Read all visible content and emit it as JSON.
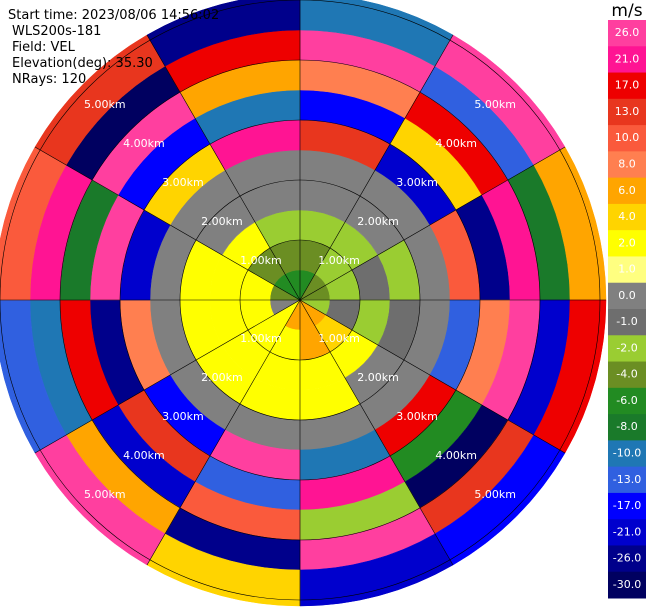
{
  "chart_data": {
    "type": "ppi",
    "info": [
      "Start time: 2023/08/06 14:56:02",
      "WLS200s-181",
      "Field: VEL",
      "Elevation(deg): 35.30",
      "NRays: 120"
    ],
    "azimuth_edges": [
      0,
      30,
      60,
      90,
      120,
      150,
      180,
      210,
      240,
      270,
      300,
      330,
      360
    ],
    "range_edges": [
      0,
      0.5,
      1,
      1.5,
      2,
      2.5,
      3,
      3.5,
      4,
      4.5,
      5.1
    ],
    "values": [
      [
        -6,
        -4,
        -2,
        0,
        0,
        13,
        -17,
        8,
        26,
        -10
      ],
      [
        -4,
        -2,
        -2,
        0,
        0,
        -21,
        4,
        17,
        -13,
        26
      ],
      [
        -4,
        -2,
        -1,
        -2,
        0,
        10,
        -26,
        21,
        -8,
        6
      ],
      [
        -2,
        -1,
        -2,
        -1,
        0,
        -13,
        8,
        26,
        -21,
        17
      ],
      [
        6,
        4,
        2,
        0,
        0,
        17,
        -6,
        -30,
        13,
        -17
      ],
      [
        6,
        6,
        2,
        2,
        0,
        -10,
        21,
        -2,
        26,
        -21
      ],
      [
        6,
        2,
        2,
        2,
        0,
        26,
        -13,
        10,
        -26,
        4
      ],
      [
        2,
        2,
        2,
        2,
        0,
        -17,
        13,
        -21,
        6,
        26
      ],
      [
        0,
        2,
        2,
        2,
        0,
        8,
        -26,
        17,
        -10,
        -13
      ],
      [
        -4,
        2,
        2,
        2,
        0,
        -21,
        26,
        -8,
        21,
        10
      ],
      [
        -6,
        -4,
        2,
        0,
        0,
        4,
        -17,
        26,
        -30,
        13
      ],
      [
        -6,
        -4,
        -2,
        0,
        0,
        21,
        -10,
        6,
        17,
        -26
      ]
    ],
    "range_rings": [
      {
        "value": 1,
        "label": "1.00km"
      },
      {
        "value": 2,
        "label": "2.00km"
      },
      {
        "value": 3,
        "label": "3.00km"
      },
      {
        "value": 4,
        "label": "4.00km"
      },
      {
        "value": 5,
        "label": "5.00km"
      }
    ],
    "colorbar": {
      "title": "m/s",
      "ticks": [
        {
          "value": 26,
          "label": "26.0"
        },
        {
          "value": 21,
          "label": "21.0"
        },
        {
          "value": 17,
          "label": "17.0"
        },
        {
          "value": 13,
          "label": "13.0"
        },
        {
          "value": 10,
          "label": "10.0"
        },
        {
          "value": 8,
          "label": "8.0"
        },
        {
          "value": 6,
          "label": "6.0"
        },
        {
          "value": 4,
          "label": "4.0"
        },
        {
          "value": 2,
          "label": "2.0"
        },
        {
          "value": 1,
          "label": "1.0"
        },
        {
          "value": 0,
          "label": "0.0"
        },
        {
          "value": -1,
          "label": "-1.0"
        },
        {
          "value": -2,
          "label": "-2.0"
        },
        {
          "value": -4,
          "label": "-4.0"
        },
        {
          "value": -6,
          "label": "-6.0"
        },
        {
          "value": -8,
          "label": "-8.0"
        },
        {
          "value": -10,
          "label": "-10.0"
        },
        {
          "value": -13,
          "label": "-13.0"
        },
        {
          "value": -17,
          "label": "-17.0"
        },
        {
          "value": -21,
          "label": "-21.0"
        },
        {
          "value": -26,
          "label": "-26.0"
        },
        {
          "value": -30,
          "label": "-30.0"
        }
      ],
      "colors": [
        "#ff3f9f",
        "#ff1493",
        "#ee0000",
        "#e8361e",
        "#fa5a3c",
        "#ff7f50",
        "#ffa500",
        "#ffd400",
        "#ffff00",
        "#ffff80",
        "#808080",
        "#6e6e6e",
        "#9acd32",
        "#6b8e23",
        "#228b22",
        "#1a7a2a",
        "#1f77b4",
        "#3060e0",
        "#0000ff",
        "#0000cd",
        "#00008b",
        "#000060"
      ]
    }
  }
}
